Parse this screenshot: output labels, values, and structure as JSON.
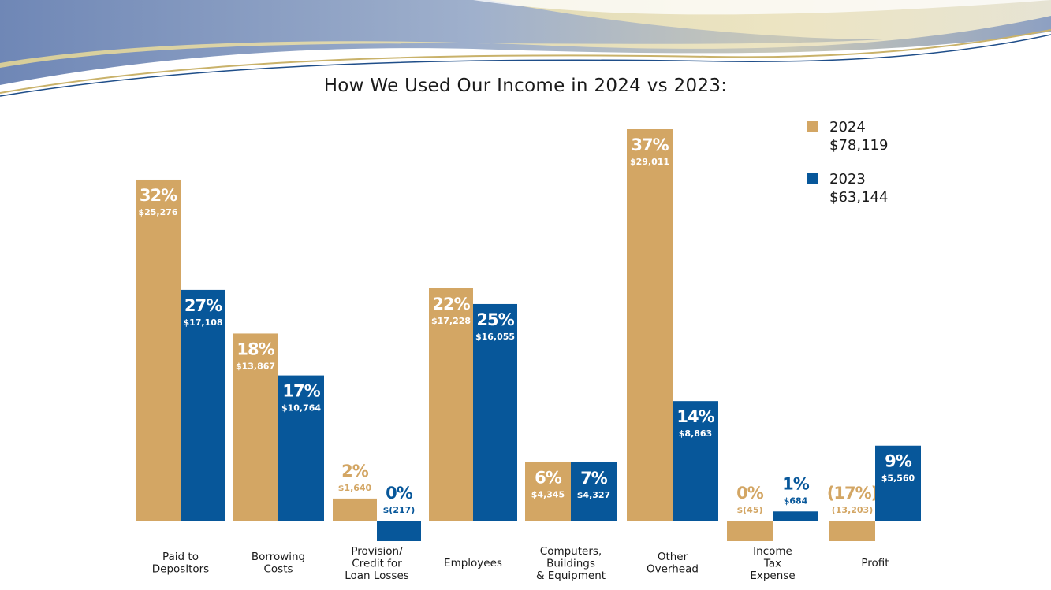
{
  "colors": {
    "y2024": "#d3a664",
    "y2023": "#07579a",
    "banner_gold": "#e8d79a",
    "banner_blue": "#1f4e89"
  },
  "chart_data": {
    "type": "bar",
    "title": "How We Used Our Income in 2024 vs 2023:",
    "categories": [
      [
        "Paid to",
        "Depositors"
      ],
      [
        "Borrowing",
        "Costs"
      ],
      [
        "Provision/",
        "Credit for",
        "Loan Losses"
      ],
      [
        "Employees"
      ],
      [
        "Computers,",
        "Buildings",
        "& Equipment"
      ],
      [
        "Other",
        "Overhead"
      ],
      [
        "Income",
        "Tax",
        "Expense"
      ],
      [
        "Profit"
      ]
    ],
    "series": [
      {
        "name": "2024",
        "total": "$78,119",
        "values": [
          25276,
          13867,
          1640,
          17228,
          4345,
          29011,
          -45,
          -13203
        ],
        "pct_labels": [
          "32%",
          "18%",
          "2%",
          "22%",
          "6%",
          "37%",
          "0%",
          "(17%)"
        ],
        "amount_labels": [
          "$25,276",
          "$13,867",
          "$1,640",
          "$17,228",
          "$4,345",
          "$29,011",
          "$(45)",
          "(13,203)"
        ]
      },
      {
        "name": "2023",
        "total": "$63,144",
        "values": [
          17108,
          10764,
          -217,
          16055,
          4327,
          8863,
          684,
          5560
        ],
        "pct_labels": [
          "27%",
          "17%",
          "0%",
          "25%",
          "7%",
          "14%",
          "1%",
          "9%"
        ],
        "amount_labels": [
          "$17,108",
          "$10,764",
          "$(217)",
          "$16,055",
          "$4,327",
          "$8,863",
          "$684",
          "$5,560"
        ]
      }
    ],
    "legend_position": "top-right",
    "grid": false
  }
}
